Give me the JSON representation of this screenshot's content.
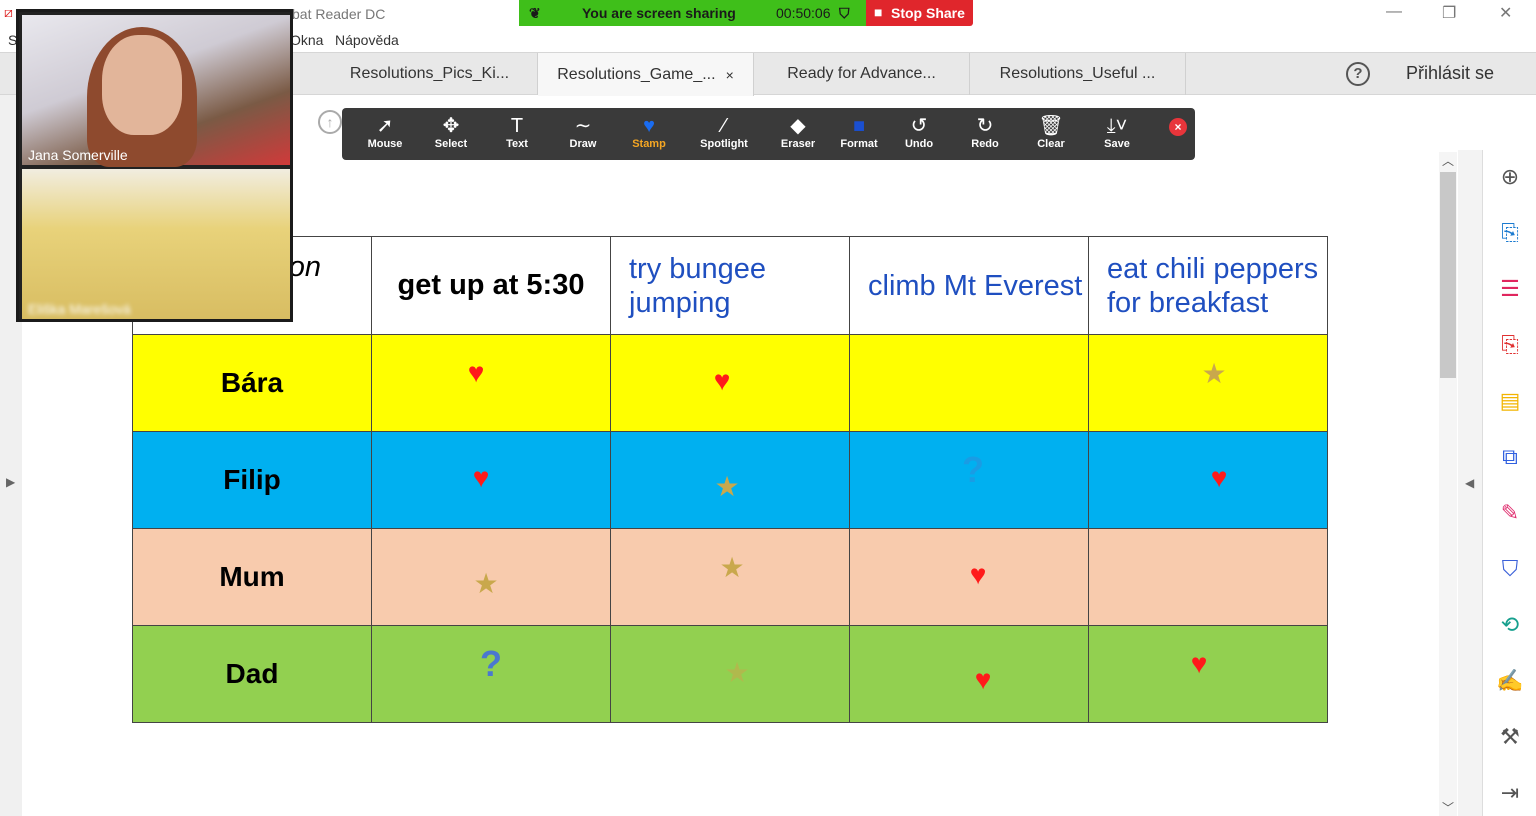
{
  "window": {
    "title": "bat Reader DC",
    "menu": [
      "S",
      "Okna",
      "Nápověda"
    ]
  },
  "share_bar": {
    "status": "You are screen sharing",
    "timer": "00:50:06",
    "stop_label": "Stop Share"
  },
  "tabs": [
    {
      "label": "Resolutions_Pics_Ki..."
    },
    {
      "label": "Resolutions_Game_...",
      "active": true,
      "close": "×"
    },
    {
      "label": "Ready for Advance..."
    },
    {
      "label": "Resolutions_Useful ..."
    }
  ],
  "header_right": {
    "help": "?",
    "login": "Přihlásit se"
  },
  "annotate_toolbar": {
    "tools": [
      {
        "label": "Mouse",
        "icon": "arrow-pointer-icon",
        "glyph": "➚"
      },
      {
        "label": "Select",
        "icon": "move-icon",
        "glyph": "✥"
      },
      {
        "label": "Text",
        "icon": "text-icon",
        "glyph": "T"
      },
      {
        "label": "Draw",
        "icon": "draw-wave-icon",
        "glyph": "∼"
      },
      {
        "label": "Stamp",
        "icon": "heart-stamp-icon",
        "glyph": "♥",
        "active": true
      },
      {
        "label": "Spotlight",
        "icon": "magic-wand-icon",
        "glyph": "⁄"
      },
      {
        "label": "Eraser",
        "icon": "eraser-icon",
        "glyph": "◆"
      },
      {
        "label": "Format",
        "icon": "format-square-icon",
        "glyph": "■"
      },
      {
        "label": "Undo",
        "icon": "undo-icon",
        "glyph": "↺"
      },
      {
        "label": "Redo",
        "icon": "redo-icon",
        "glyph": "↻"
      },
      {
        "label": "Clear",
        "icon": "trash-icon",
        "glyph": "🗑"
      },
      {
        "label": "Save",
        "icon": "save-download-icon",
        "glyph": "⤓˅"
      }
    ],
    "close": "×",
    "accent": "#f5a623"
  },
  "video": {
    "participants": [
      {
        "name": "Jana Somerville"
      },
      {
        "name": "Eliška Marešová"
      }
    ]
  },
  "table": {
    "headers": [
      "on",
      "get up at 5:30",
      "try bungee jumping",
      "climb Mt Everest",
      "eat chili peppers for breakfast"
    ],
    "rows": [
      {
        "name": "Bára",
        "color": "#ffff00",
        "marks": [
          "heart",
          "heart",
          "",
          "star"
        ]
      },
      {
        "name": "Filip",
        "color": "#00b0f0",
        "marks": [
          "heart",
          "star",
          "question",
          "heart"
        ]
      },
      {
        "name": "Mum",
        "color": "#f8cbad",
        "marks": [
          "star",
          "star",
          "heart",
          ""
        ]
      },
      {
        "name": "Dad",
        "color": "#92d050",
        "marks": [
          "question",
          "star",
          "heart",
          "heart"
        ]
      }
    ]
  },
  "stamp_glyphs": {
    "heart": "♥",
    "star": "★",
    "question": "?"
  },
  "colors": {
    "heart": "#ff1a1a",
    "star": "#c9a84c",
    "question": "#4a78d0",
    "share_green": "#3fbf1a",
    "stop_red": "#e0262c"
  }
}
